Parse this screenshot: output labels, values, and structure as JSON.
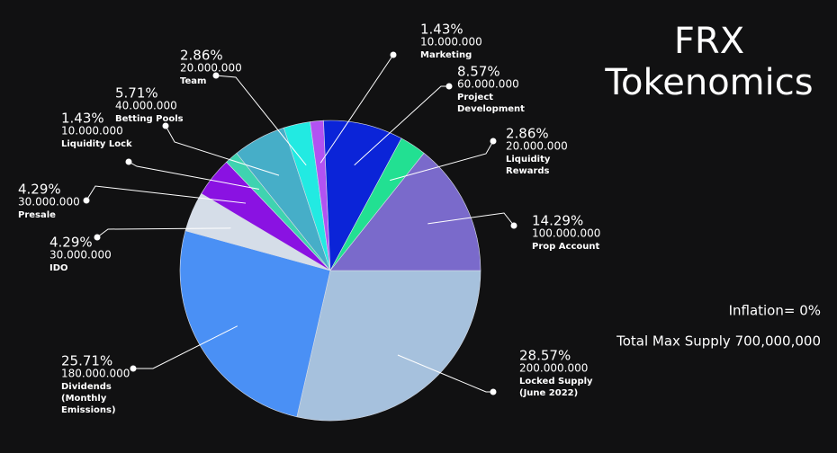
{
  "chart_data": {
    "type": "pie",
    "title": "FRX Tokenomics",
    "categories": [
      "Locked Supply\n(June 2022)",
      "Dividends\n(Monthly\nEmissions)",
      "IDO",
      "Presale",
      "Liquidity Lock",
      "Betting Pools",
      "Team",
      "Marketing",
      "Project\nDevelopment",
      "Liquidity\nRewards",
      "Prop Account"
    ],
    "values": [
      28.57,
      25.71,
      4.29,
      4.29,
      1.43,
      5.71,
      2.86,
      1.43,
      8.57,
      2.86,
      14.29
    ],
    "value_labels": [
      "28.57%",
      "25.71%",
      "4.29%",
      "4.29%",
      "1.43%",
      "5.71%",
      "2.86%",
      "1.43%",
      "8.57%",
      "2.86%",
      "14.29%"
    ],
    "amounts": [
      "200.000.000",
      "180.000.000",
      "30.000.000",
      "30.000.000",
      "10.000.000",
      "40.000.000",
      "20.000.000",
      "10.000.000",
      "60.000.000",
      "20.000.000",
      "100.000.000"
    ],
    "colors": [
      "#a6c1dd",
      "#4a90f5",
      "#d5dde8",
      "#8a12e2",
      "#3fd3b0",
      "#46aec8",
      "#22eae2",
      "#b252f2",
      "#0b24d8",
      "#22e092",
      "#7a6acb"
    ],
    "annotations": [
      "Inflation= 0%",
      "Total Max Supply 700,000,000"
    ]
  }
}
